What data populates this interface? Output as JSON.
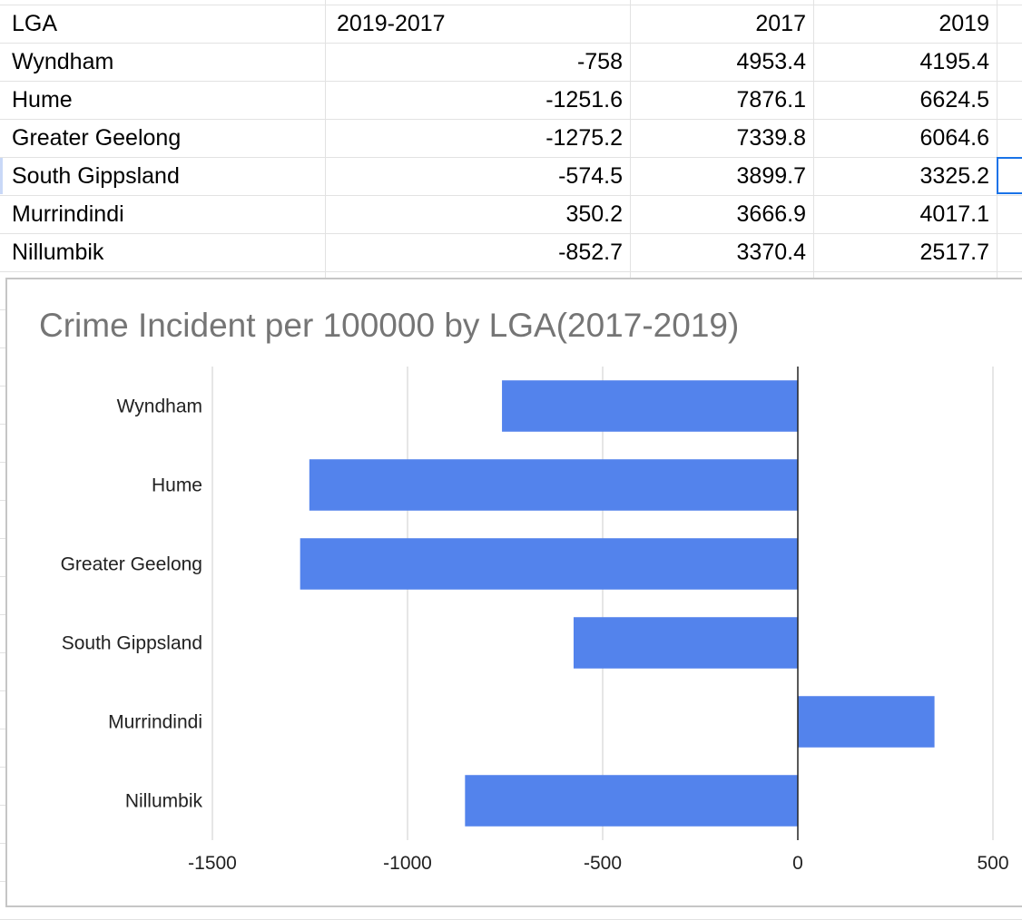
{
  "sheet": {
    "headers": [
      "LGA",
      "2019-2017",
      "2017",
      "2019"
    ],
    "rows": [
      [
        "Wyndham",
        "-758",
        "4953.4",
        "4195.4"
      ],
      [
        "Hume",
        "-1251.6",
        "7876.1",
        "6624.5"
      ],
      [
        "Greater Geelong",
        "-1275.2",
        "7339.8",
        "6064.6"
      ],
      [
        "South Gippsland",
        "-574.5",
        "3899.7",
        "3325.2"
      ],
      [
        "Murrindindi",
        "350.2",
        "3666.9",
        "4017.1"
      ],
      [
        "Nillumbik",
        "-852.7",
        "3370.4",
        "2517.7"
      ]
    ]
  },
  "chart_data": {
    "type": "bar",
    "orientation": "horizontal",
    "title": "Crime Incident per 100000 by LGA(2017-2019)",
    "categories": [
      "Wyndham",
      "Hume",
      "Greater Geelong",
      "South Gippsland",
      "Murrindindi",
      "Nillumbik"
    ],
    "values": [
      -758,
      -1251.6,
      -1275.2,
      -574.5,
      350.2,
      -852.7
    ],
    "series": [
      {
        "name": "2019-2017",
        "values": [
          -758,
          -1251.6,
          -1275.2,
          -574.5,
          350.2,
          -852.7
        ]
      }
    ],
    "xlim": [
      -1500,
      500
    ],
    "xticks": [
      -1500,
      -1000,
      -500,
      0,
      500
    ],
    "xtick_labels": [
      "-1500",
      "-1000",
      "-500",
      "0",
      "500"
    ],
    "xlabel": "",
    "ylabel": "",
    "grid": true,
    "legend": "none",
    "bar_color": "#5383ec"
  }
}
